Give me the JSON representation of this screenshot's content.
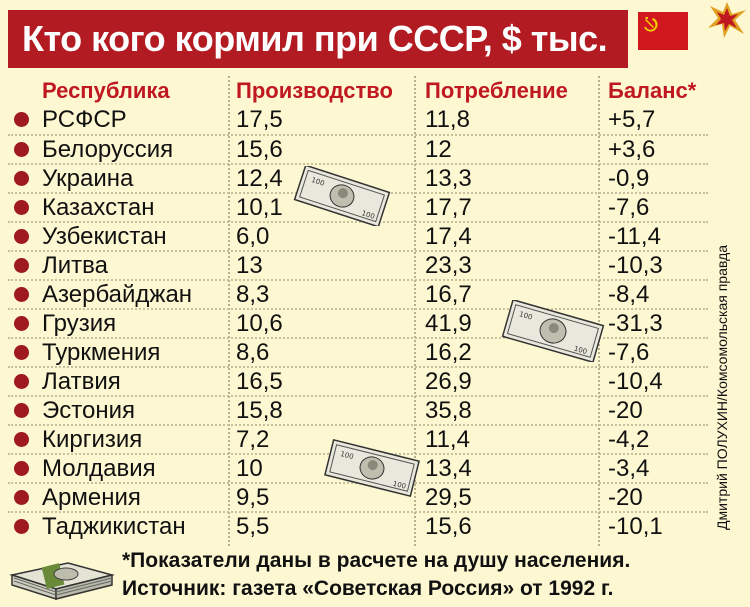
{
  "title": "Кто кого кормил при СССР, $ тыс.",
  "flag_icon": "ussr-flag-icon",
  "headers": {
    "republic": "Республика",
    "production": "Производство",
    "consumption": "Потребление",
    "balance": "Баланс*"
  },
  "rows": [
    {
      "name": "РСФСР",
      "production": "17,5",
      "consumption": "11,8",
      "balance": "+5,7"
    },
    {
      "name": "Белоруссия",
      "production": "15,6",
      "consumption": "12",
      "balance": "+3,6"
    },
    {
      "name": "Украина",
      "production": "12,4",
      "consumption": "13,3",
      "balance": "-0,9"
    },
    {
      "name": "Казахстан",
      "production": "10,1",
      "consumption": "17,7",
      "balance": "-7,6"
    },
    {
      "name": "Узбекистан",
      "production": "6,0",
      "consumption": "17,4",
      "balance": "-11,4"
    },
    {
      "name": "Литва",
      "production": "13",
      "consumption": "23,3",
      "balance": "-10,3"
    },
    {
      "name": "Азербайджан",
      "production": "8,3",
      "consumption": "16,7",
      "balance": "-8,4"
    },
    {
      "name": "Грузия",
      "production": "10,6",
      "consumption": "41,9",
      "balance": "-31,3"
    },
    {
      "name": "Туркмения",
      "production": "8,6",
      "consumption": "16,2",
      "balance": "-7,6"
    },
    {
      "name": "Латвия",
      "production": "16,5",
      "consumption": "26,9",
      "balance": "-10,4"
    },
    {
      "name": "Эстония",
      "production": "15,8",
      "consumption": "35,8",
      "balance": "-20"
    },
    {
      "name": "Киргизия",
      "production": "7,2",
      "consumption": "11,4",
      "balance": "-4,2"
    },
    {
      "name": "Молдавия",
      "production": "10",
      "consumption": "13,4",
      "balance": "-3,4"
    },
    {
      "name": "Армения",
      "production": "9,5",
      "consumption": "29,5",
      "balance": "-20"
    },
    {
      "name": "Таджикистан",
      "production": "5,5",
      "consumption": "15,6",
      "balance": "-10,1"
    }
  ],
  "credit": "Дмитрий ПОЛУХИН/Комсомольская правда",
  "footnote": {
    "line1": "*Показатели даны в расчете на душу населения.",
    "line2": "Источник: газета «Советская Россия» от 1992 г."
  },
  "colors": {
    "title_bg": "#b31b22",
    "header_text": "#c01820",
    "background": "#fdf7d2",
    "bullet": "#9e1a20"
  }
}
